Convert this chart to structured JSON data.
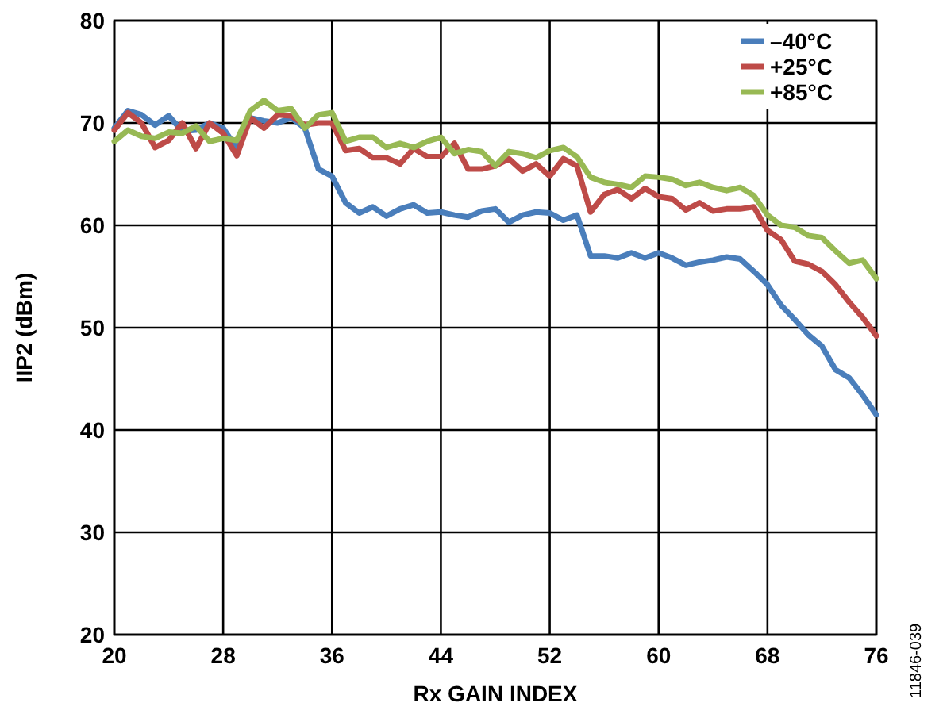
{
  "chart_data": {
    "type": "line",
    "xlabel": "Rx GAIN INDEX",
    "ylabel": "IIP2 (dBm)",
    "x": [
      20,
      21,
      22,
      23,
      24,
      25,
      26,
      27,
      28,
      29,
      30,
      31,
      32,
      33,
      34,
      35,
      36,
      37,
      38,
      39,
      40,
      41,
      42,
      43,
      44,
      45,
      46,
      47,
      48,
      49,
      50,
      51,
      52,
      53,
      54,
      55,
      56,
      57,
      58,
      59,
      60,
      61,
      62,
      63,
      64,
      65,
      66,
      67,
      68,
      69,
      70,
      71,
      72,
      73,
      74,
      75,
      76
    ],
    "series": [
      {
        "name": "–40°C",
        "color": "#4a7ebb",
        "values": [
          69.5,
          71.2,
          70.8,
          69.8,
          70.7,
          69.2,
          69.3,
          70.0,
          69.5,
          67.5,
          70.5,
          70.2,
          70.0,
          70.5,
          69.5,
          65.5,
          64.8,
          62.2,
          61.2,
          61.8,
          60.9,
          61.6,
          62.0,
          61.2,
          61.3,
          61.0,
          60.8,
          61.4,
          61.6,
          60.3,
          61.0,
          61.3,
          61.2,
          60.5,
          61.0,
          57.0,
          57.0,
          56.8,
          57.3,
          56.8,
          57.3,
          56.8,
          56.1,
          56.4,
          56.6,
          56.9,
          56.7,
          55.5,
          54.2,
          52.2,
          50.8,
          49.3,
          48.2,
          45.9,
          45.1,
          43.4,
          41.5
        ]
      },
      {
        "name": "+25°C",
        "color": "#be4b48",
        "values": [
          69.3,
          71.0,
          70.0,
          67.6,
          68.3,
          70.0,
          67.5,
          70.0,
          69.0,
          66.8,
          70.5,
          69.5,
          70.8,
          70.7,
          69.8,
          70.0,
          70.0,
          67.3,
          67.5,
          66.6,
          66.6,
          66.0,
          67.5,
          66.7,
          66.7,
          68.0,
          65.5,
          65.5,
          65.8,
          66.5,
          65.3,
          66.0,
          64.8,
          66.5,
          65.8,
          61.3,
          63.0,
          63.5,
          62.6,
          63.6,
          62.8,
          62.6,
          61.5,
          62.2,
          61.4,
          61.6,
          61.6,
          61.8,
          59.5,
          58.6,
          56.5,
          56.2,
          55.5,
          54.2,
          52.5,
          51.0,
          49.2
        ]
      },
      {
        "name": "+85°C",
        "color": "#98b954",
        "values": [
          68.2,
          69.3,
          68.7,
          68.5,
          69.1,
          69.0,
          69.7,
          68.2,
          68.5,
          68.3,
          71.2,
          72.2,
          71.2,
          71.4,
          69.5,
          70.8,
          71.0,
          68.2,
          68.6,
          68.6,
          67.6,
          68.0,
          67.6,
          68.2,
          68.6,
          67.0,
          67.4,
          67.2,
          65.8,
          67.2,
          67.0,
          66.6,
          67.3,
          67.6,
          66.7,
          64.7,
          64.2,
          64.0,
          63.7,
          64.8,
          64.7,
          64.5,
          63.9,
          64.2,
          63.7,
          63.4,
          63.7,
          62.9,
          61.0,
          60.0,
          59.8,
          59.0,
          58.8,
          57.5,
          56.3,
          56.6,
          54.8
        ]
      }
    ],
    "xlim": [
      20,
      76
    ],
    "xticks": [
      20,
      28,
      36,
      44,
      52,
      60,
      68,
      76
    ],
    "ylim": [
      20,
      80
    ],
    "yticks": [
      20,
      30,
      40,
      50,
      60,
      70,
      80
    ],
    "grid": true,
    "legend": "top right",
    "line_style": "solid",
    "marker": "none",
    "annotations": [
      "11846-039"
    ]
  }
}
